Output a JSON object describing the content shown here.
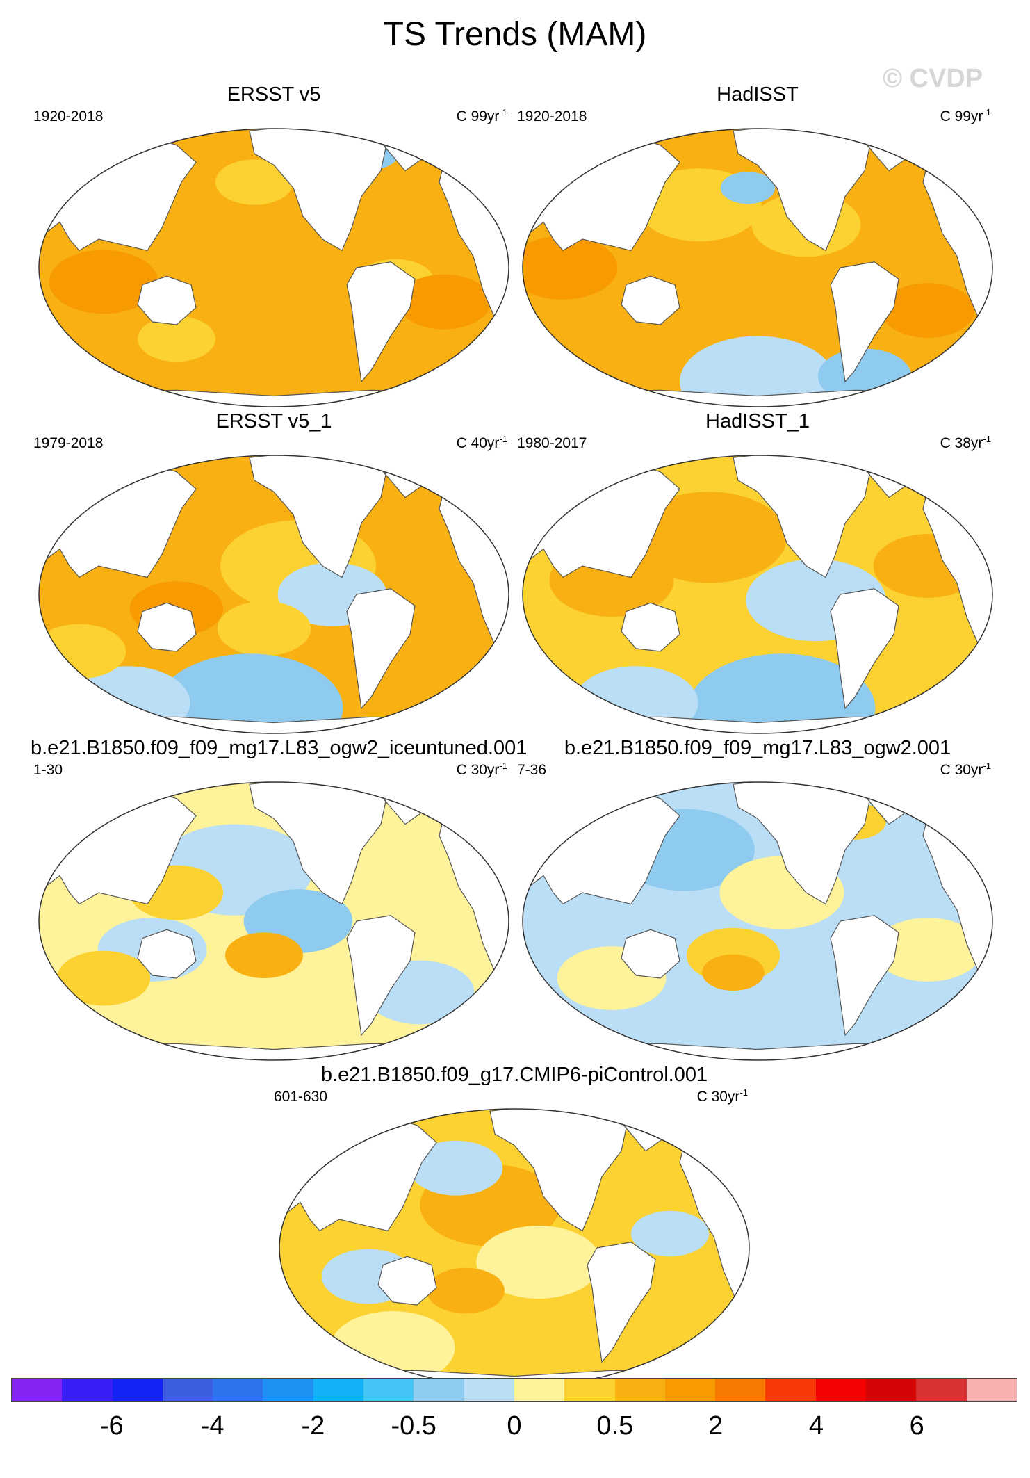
{
  "figure": {
    "title": "TS Trends (MAM)",
    "watermark": "© CVDP"
  },
  "panels": [
    {
      "title": "ERSST v5",
      "period": "1920-2018",
      "units_prefix": "C 99yr",
      "units_exp": "-1",
      "ocean": "#f9b012",
      "blobs": [
        [
          "#fbd232",
          0.46,
          0.2,
          0.05
        ],
        [
          "#8fcbee",
          0.7,
          0.1,
          0.035
        ],
        [
          "#fbd232",
          0.75,
          0.55,
          0.05
        ],
        [
          "#f89b00",
          0.15,
          0.55,
          0.07
        ],
        [
          "#f89b00",
          0.85,
          0.62,
          0.06
        ],
        [
          "#fbd232",
          0.3,
          0.75,
          0.05
        ]
      ]
    },
    {
      "title": "HadISST",
      "period": "1920-2018",
      "units_prefix": "C 99yr",
      "units_exp": "-1",
      "ocean": "#f9b012",
      "blobs": [
        [
          "#fbd232",
          0.38,
          0.28,
          0.08
        ],
        [
          "#fbd232",
          0.6,
          0.35,
          0.07
        ],
        [
          "#8fcbee",
          0.48,
          0.22,
          0.035
        ],
        [
          "#b9def5",
          0.5,
          0.9,
          0.1
        ],
        [
          "#8fcbee",
          0.72,
          0.88,
          0.06
        ],
        [
          "#f89b00",
          0.1,
          0.5,
          0.07
        ],
        [
          "#f89b00",
          0.85,
          0.65,
          0.06
        ]
      ]
    },
    {
      "title": "ERSST v5_1",
      "period": "1979-2018",
      "units_prefix": "C 40yr",
      "units_exp": "-1",
      "ocean": "#f9b012",
      "blobs": [
        [
          "#fbd232",
          0.55,
          0.4,
          0.1
        ],
        [
          "#b9def5",
          0.62,
          0.5,
          0.07
        ],
        [
          "#fbd232",
          0.48,
          0.62,
          0.06
        ],
        [
          "#8fcbee",
          0.45,
          0.9,
          0.12
        ],
        [
          "#b9def5",
          0.2,
          0.88,
          0.08
        ],
        [
          "#f89b00",
          0.3,
          0.55,
          0.06
        ],
        [
          "#fbd232",
          0.1,
          0.7,
          0.06
        ]
      ]
    },
    {
      "title": "HadISST_1",
      "period": "1980-2017",
      "units_prefix": "C 38yr",
      "units_exp": "-1",
      "ocean": "#fbd232",
      "blobs": [
        [
          "#f9b012",
          0.4,
          0.3,
          0.1
        ],
        [
          "#b9def5",
          0.62,
          0.52,
          0.09
        ],
        [
          "#f9b012",
          0.2,
          0.45,
          0.08
        ],
        [
          "#8fcbee",
          0.55,
          0.9,
          0.12
        ],
        [
          "#b9def5",
          0.25,
          0.88,
          0.08
        ],
        [
          "#f9b012",
          0.85,
          0.4,
          0.07
        ]
      ]
    },
    {
      "title": "b.e21.B1850.f09_f09_mg17.L83_ogw2_iceuntuned.001",
      "period": "1-30",
      "units_prefix": "C 30yr",
      "units_exp": "-1",
      "ocean": "#fef29a",
      "blobs": [
        [
          "#b9def5",
          0.42,
          0.32,
          0.1
        ],
        [
          "#8fcbee",
          0.55,
          0.5,
          0.07
        ],
        [
          "#f9b012",
          0.48,
          0.62,
          0.05
        ],
        [
          "#b9def5",
          0.25,
          0.6,
          0.07
        ],
        [
          "#fbd232",
          0.15,
          0.7,
          0.06
        ],
        [
          "#b9def5",
          0.8,
          0.75,
          0.07
        ],
        [
          "#fbd232",
          0.3,
          0.4,
          0.06
        ]
      ]
    },
    {
      "title": "b.e21.B1850.f09_f09_mg17.L83_ogw2.001",
      "period": "7-36",
      "units_prefix": "C 30yr",
      "units_exp": "-1",
      "ocean": "#b9def5",
      "blobs": [
        [
          "#8fcbee",
          0.35,
          0.25,
          0.09
        ],
        [
          "#fef29a",
          0.55,
          0.4,
          0.08
        ],
        [
          "#fbd232",
          0.45,
          0.62,
          0.06
        ],
        [
          "#f9b012",
          0.45,
          0.68,
          0.04
        ],
        [
          "#fef29a",
          0.2,
          0.7,
          0.07
        ],
        [
          "#fef29a",
          0.85,
          0.6,
          0.07
        ],
        [
          "#fbd232",
          0.7,
          0.15,
          0.04
        ]
      ]
    },
    {
      "title": "b.e21.B1850.f09_g17.CMIP6-piControl.001",
      "period": "601-630",
      "units_prefix": "C 30yr",
      "units_exp": "-1",
      "ocean": "#fbd232",
      "blobs": [
        [
          "#f9b012",
          0.45,
          0.35,
          0.09
        ],
        [
          "#b9def5",
          0.38,
          0.22,
          0.06
        ],
        [
          "#fef29a",
          0.55,
          0.55,
          0.08
        ],
        [
          "#b9def5",
          0.2,
          0.6,
          0.06
        ],
        [
          "#f9b012",
          0.4,
          0.65,
          0.05
        ],
        [
          "#b9def5",
          0.82,
          0.45,
          0.05
        ],
        [
          "#fef29a",
          0.25,
          0.85,
          0.08
        ]
      ]
    }
  ],
  "colorbar": {
    "colors": [
      "#8624f5",
      "#3a1ef8",
      "#1423f5",
      "#3d5ee0",
      "#2d74ec",
      "#1f90f4",
      "#12b0f5",
      "#45c3f5",
      "#8fcbee",
      "#b9def5",
      "#fef29a",
      "#fbd232",
      "#f9b012",
      "#f89b00",
      "#f87a04",
      "#fa3a06",
      "#f70202",
      "#d50505",
      "#d83232",
      "#f8b0b0"
    ],
    "labels": [
      "-6",
      "-4",
      "-2",
      "-0.5",
      "0",
      "0.5",
      "2",
      "4",
      "6"
    ]
  }
}
